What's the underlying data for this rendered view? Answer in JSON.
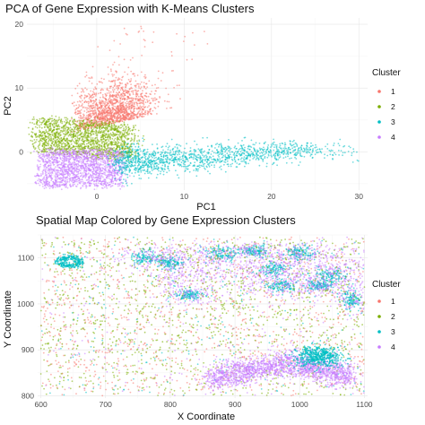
{
  "chart_data": [
    {
      "type": "scatter",
      "title": "PCA of Gene Expression with K-Means Clusters",
      "xlabel": "PC1",
      "ylabel": "PC2",
      "xlim": [
        -8,
        31
      ],
      "ylim": [
        -6,
        21
      ],
      "x_ticks": [
        0,
        10,
        20,
        30
      ],
      "y_ticks": [
        0,
        10,
        20
      ],
      "grid": true,
      "legend": {
        "title": "Cluster",
        "placement": "right"
      },
      "series": [
        {
          "name": "1",
          "color": "#F8766D",
          "region": "upper band, PC1 -4 to 8, PC2 2 to 17"
        },
        {
          "name": "2",
          "color": "#7CAE00",
          "region": "middle band, PC1 -7 to 4, PC2 -1 to 6"
        },
        {
          "name": "3",
          "color": "#00BFC4",
          "region": "right tail, PC1 3 to 29, PC2 -5 to 2"
        },
        {
          "name": "4",
          "color": "#C77CFF",
          "region": "lower band, PC1 -7 to 3, PC2 -6 to 0"
        }
      ]
    },
    {
      "type": "scatter",
      "title": "Spatial Map Colored by Gene Expression Clusters",
      "xlabel": "X Coordinate",
      "ylabel": "Y Coordinate",
      "xlim": [
        595,
        1105
      ],
      "ylim": [
        795,
        1150
      ],
      "x_ticks": [
        600,
        700,
        800,
        900,
        1000,
        1100
      ],
      "y_ticks": [
        800,
        900,
        1000,
        1100
      ],
      "grid": true,
      "legend": {
        "title": "Cluster",
        "placement": "right"
      },
      "series": [
        {
          "name": "1",
          "color": "#F8766D"
        },
        {
          "name": "2",
          "color": "#7CAE00"
        },
        {
          "name": "3",
          "color": "#00BFC4"
        },
        {
          "name": "4",
          "color": "#C77CFF"
        }
      ],
      "clusters_of_note": [
        {
          "series": "4",
          "x": 940,
          "y": 870,
          "note": "large purple band lower-right"
        },
        {
          "series": "3",
          "x": 1030,
          "y": 885,
          "note": "dense teal core"
        },
        {
          "series": "3",
          "x": 645,
          "y": 1090,
          "note": "teal ring top-left"
        }
      ]
    }
  ]
}
